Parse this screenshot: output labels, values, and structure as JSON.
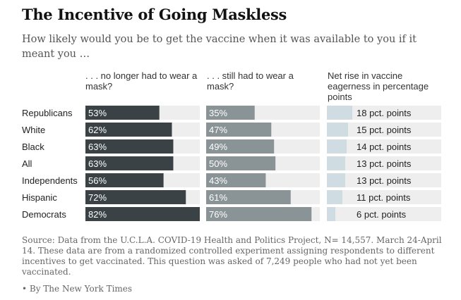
{
  "header": {
    "title": "The Incentive of Going Maskless",
    "subtitle": "How likely would you be to get the vaccine when it was available to you if it meant you …"
  },
  "chart_data": {
    "type": "bar",
    "title": "The Incentive of Going Maskless",
    "categories": [
      "Republicans",
      "White",
      "Black",
      "All",
      "Independents",
      "Hispanic",
      "Democrats"
    ],
    "series": [
      {
        "name": ". . . no longer had to wear a mask?",
        "values": [
          53,
          62,
          63,
          63,
          56,
          72,
          82
        ],
        "labels": [
          "53%",
          "62%",
          "63%",
          "63%",
          "56%",
          "72%",
          "82%"
        ],
        "color": "#3a4245"
      },
      {
        "name": ". . . still had to wear a mask?",
        "values": [
          35,
          47,
          49,
          50,
          43,
          61,
          76
        ],
        "labels": [
          "35%",
          "47%",
          "49%",
          "50%",
          "43%",
          "61%",
          "76%"
        ],
        "color": "#8a9396"
      },
      {
        "name": "Net rise in vaccine eagerness in percentage points",
        "values": [
          18,
          15,
          14,
          13,
          13,
          11,
          6
        ],
        "labels": [
          "18 pct. points",
          "15 pct. points",
          "14 pct. points",
          "13 pct. points",
          "13 pct. points",
          "11 pct. points",
          "6 pct. points"
        ],
        "color": "#cfdde2"
      }
    ],
    "track_color": "#eeeeee",
    "xlim_percent": [
      0,
      100
    ],
    "xlim_points": [
      0,
      100
    ]
  },
  "footer": {
    "source": "Source: Data from the U.C.L.A. COVID-19 Health and Politics Project, N= 14,557. March 24-April 14. These data are from a randomized controlled experiment assigning respondents to different incentives to get vaccinated. This question was asked of 7,249 people who had not yet been vaccinated.",
    "byline": "• By The New York Times"
  }
}
